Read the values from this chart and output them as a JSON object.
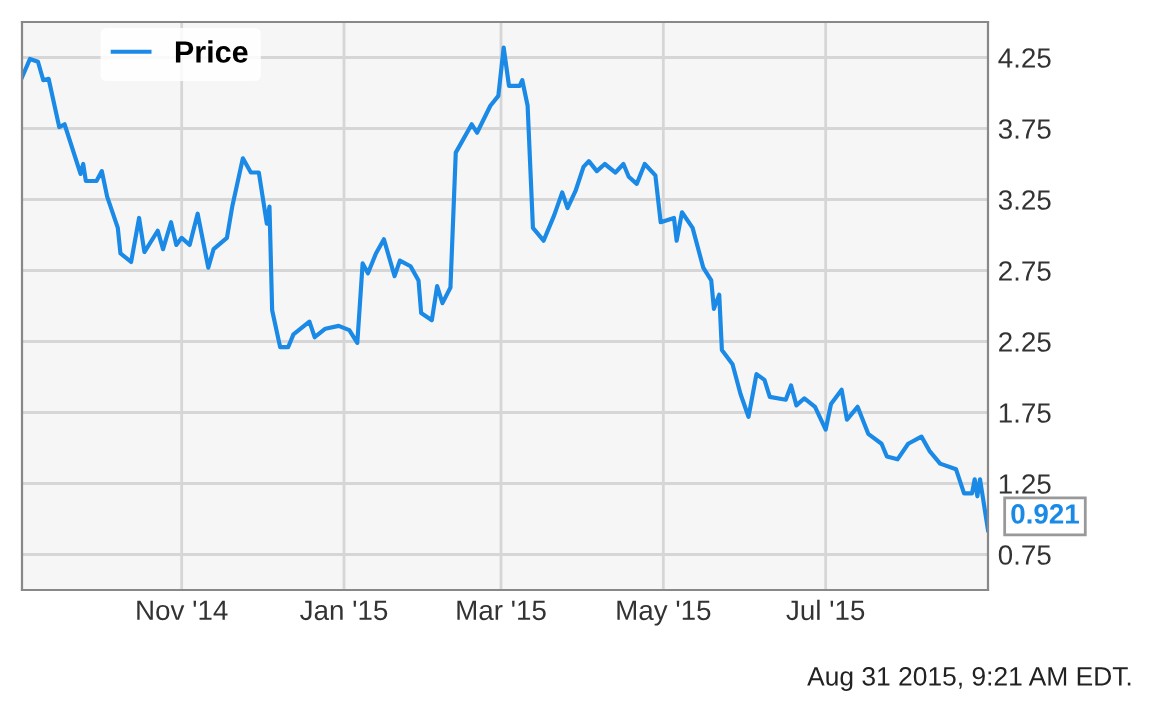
{
  "chart_data": {
    "type": "line",
    "legend": "top left",
    "grid": true,
    "marker": "none",
    "line_style": "solid",
    "xlim": [
      "2014-09-02",
      "2015-08-31"
    ],
    "xticks": [
      {
        "value": "2014-11-01",
        "label": "Nov '14"
      },
      {
        "value": "2015-01-01",
        "label": "Jan '15"
      },
      {
        "value": "2015-03-01",
        "label": "Mar '15"
      },
      {
        "value": "2015-05-01",
        "label": "May '15"
      },
      {
        "value": "2015-07-01",
        "label": "Jul '15"
      }
    ],
    "ylim": [
      0.5,
      4.5
    ],
    "yticks": [
      {
        "value": 0.75,
        "label": "0.75"
      },
      {
        "value": 1.25,
        "label": "1.25"
      },
      {
        "value": 1.75,
        "label": "1.75"
      },
      {
        "value": 2.25,
        "label": "2.25"
      },
      {
        "value": 2.75,
        "label": "2.75"
      },
      {
        "value": 3.25,
        "label": "3.25"
      },
      {
        "value": 3.75,
        "label": "3.75"
      },
      {
        "value": 4.25,
        "label": "4.25"
      }
    ],
    "annotations": [
      "Aug 31 2015, 9:21 AM EDT."
    ],
    "series": [
      {
        "name": "Price",
        "color": "#1a8ae6",
        "x": [
          "2014-09-02",
          "2014-09-05",
          "2014-09-08",
          "2014-09-10",
          "2014-09-12",
          "2014-09-16",
          "2014-09-18",
          "2014-09-24",
          "2014-09-25",
          "2014-09-26",
          "2014-09-30",
          "2014-10-02",
          "2014-10-04",
          "2014-10-08",
          "2014-10-09",
          "2014-10-13",
          "2014-10-16",
          "2014-10-18",
          "2014-10-23",
          "2014-10-25",
          "2014-10-28",
          "2014-10-30",
          "2014-11-01",
          "2014-11-04",
          "2014-11-07",
          "2014-11-11",
          "2014-11-13",
          "2014-11-18",
          "2014-11-20",
          "2014-11-24",
          "2014-11-27",
          "2014-11-30",
          "2014-12-03",
          "2014-12-04",
          "2014-12-05",
          "2014-12-08",
          "2014-12-11",
          "2014-12-13",
          "2014-12-19",
          "2014-12-21",
          "2014-12-25",
          "2014-12-30",
          "2015-01-03",
          "2015-01-06",
          "2015-01-08",
          "2015-01-10",
          "2015-01-13",
          "2015-01-16",
          "2015-01-20",
          "2015-01-22",
          "2015-01-26",
          "2015-01-29",
          "2015-01-30",
          "2015-02-03",
          "2015-02-05",
          "2015-02-07",
          "2015-02-10",
          "2015-02-12",
          "2015-02-18",
          "2015-02-20",
          "2015-02-25",
          "2015-02-28",
          "2015-03-02",
          "2015-03-04",
          "2015-03-08",
          "2015-03-09",
          "2015-03-11",
          "2015-03-13",
          "2015-03-17",
          "2015-03-21",
          "2015-03-24",
          "2015-03-26",
          "2015-03-29",
          "2015-04-01",
          "2015-04-03",
          "2015-04-06",
          "2015-04-09",
          "2015-04-13",
          "2015-04-16",
          "2015-04-18",
          "2015-04-21",
          "2015-04-24",
          "2015-04-28",
          "2015-04-30",
          "2015-05-05",
          "2015-05-06",
          "2015-05-08",
          "2015-05-12",
          "2015-05-16",
          "2015-05-19",
          "2015-05-20",
          "2015-05-22",
          "2015-05-23",
          "2015-05-27",
          "2015-05-30",
          "2015-06-02",
          "2015-06-05",
          "2015-06-08",
          "2015-06-10",
          "2015-06-16",
          "2015-06-18",
          "2015-06-20",
          "2015-06-23",
          "2015-06-27",
          "2015-07-01",
          "2015-07-03",
          "2015-07-07",
          "2015-07-09",
          "2015-07-13",
          "2015-07-17",
          "2015-07-22",
          "2015-07-24",
          "2015-07-28",
          "2015-08-01",
          "2015-08-06",
          "2015-08-09",
          "2015-08-13",
          "2015-08-19",
          "2015-08-22",
          "2015-08-25",
          "2015-08-26",
          "2015-08-27",
          "2015-08-28",
          "2015-08-31"
        ],
        "values": [
          4.11,
          4.24,
          4.22,
          4.09,
          4.1,
          3.76,
          3.78,
          3.43,
          3.5,
          3.38,
          3.38,
          3.45,
          3.27,
          3.05,
          2.87,
          2.81,
          3.12,
          2.88,
          3.03,
          2.9,
          3.09,
          2.93,
          2.98,
          2.93,
          3.15,
          2.77,
          2.9,
          2.98,
          3.2,
          3.54,
          3.44,
          3.44,
          3.08,
          3.2,
          2.47,
          2.21,
          2.21,
          2.3,
          2.39,
          2.28,
          2.34,
          2.36,
          2.33,
          2.24,
          2.8,
          2.73,
          2.87,
          2.97,
          2.71,
          2.82,
          2.78,
          2.68,
          2.45,
          2.4,
          2.64,
          2.52,
          2.63,
          3.58,
          3.78,
          3.72,
          3.91,
          3.98,
          4.32,
          4.05,
          4.05,
          4.09,
          3.91,
          3.05,
          2.96,
          3.14,
          3.3,
          3.19,
          3.31,
          3.48,
          3.52,
          3.45,
          3.5,
          3.44,
          3.5,
          3.41,
          3.36,
          3.5,
          3.42,
          3.09,
          3.12,
          2.96,
          3.16,
          3.05,
          2.77,
          2.68,
          2.48,
          2.58,
          2.19,
          2.09,
          1.88,
          1.72,
          2.02,
          1.98,
          1.86,
          1.84,
          1.94,
          1.8,
          1.85,
          1.79,
          1.63,
          1.81,
          1.91,
          1.7,
          1.79,
          1.6,
          1.53,
          1.44,
          1.42,
          1.53,
          1.58,
          1.48,
          1.39,
          1.35,
          1.18,
          1.18,
          1.28,
          1.16,
          1.28,
          0.921
        ],
        "value_labels": [
          null,
          null,
          null,
          null,
          null,
          null,
          null,
          null,
          null,
          null,
          null,
          null,
          null,
          null,
          null,
          null,
          null,
          null,
          null,
          null,
          null,
          null,
          null,
          null,
          null,
          null,
          null,
          null,
          null,
          null,
          null,
          null,
          null,
          null,
          null,
          null,
          null,
          null,
          null,
          null,
          null,
          null,
          null,
          null,
          null,
          null,
          null,
          null,
          null,
          null,
          null,
          null,
          null,
          null,
          null,
          null,
          null,
          null,
          null,
          null,
          null,
          null,
          null,
          null,
          null,
          null,
          null,
          null,
          null,
          null,
          null,
          null,
          null,
          null,
          null,
          null,
          null,
          null,
          null,
          null,
          null,
          null,
          null,
          null,
          null,
          null,
          null,
          null,
          null,
          null,
          null,
          null,
          null,
          null,
          null,
          null,
          null,
          null,
          null,
          null,
          null,
          null,
          null,
          null,
          null,
          null,
          null,
          null,
          null,
          null,
          null,
          null,
          null,
          null,
          null,
          null,
          null,
          null,
          null,
          null,
          null,
          null,
          null,
          "0.921"
        ]
      }
    ]
  }
}
